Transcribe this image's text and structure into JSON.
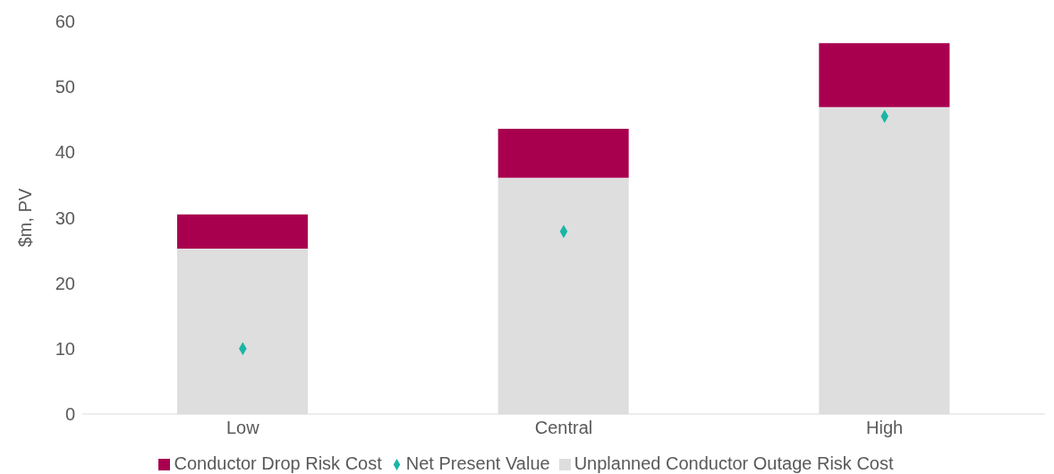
{
  "chart_data": {
    "type": "bar",
    "ylabel": "$m, PV",
    "categories": [
      "Low",
      "Central",
      "High"
    ],
    "stacked": true,
    "series": [
      {
        "name": "Unplanned Conductor Outage Risk Cost",
        "color": "#dedede",
        "values": [
          25.3,
          36.1,
          46.9
        ]
      },
      {
        "name": "Conductor Drop Risk Cost",
        "color": "#a8004f",
        "values": [
          5.2,
          7.5,
          9.8
        ]
      },
      {
        "name": "Net Present Value",
        "type": "scatter",
        "marker": "diamond",
        "color": "#1ab5a5",
        "values": [
          10.0,
          27.9,
          45.5
        ]
      }
    ],
    "ylim": [
      0,
      60
    ],
    "yticks": [
      0,
      10,
      20,
      30,
      40,
      50,
      60
    ],
    "grid": false,
    "legend": "bottom"
  }
}
